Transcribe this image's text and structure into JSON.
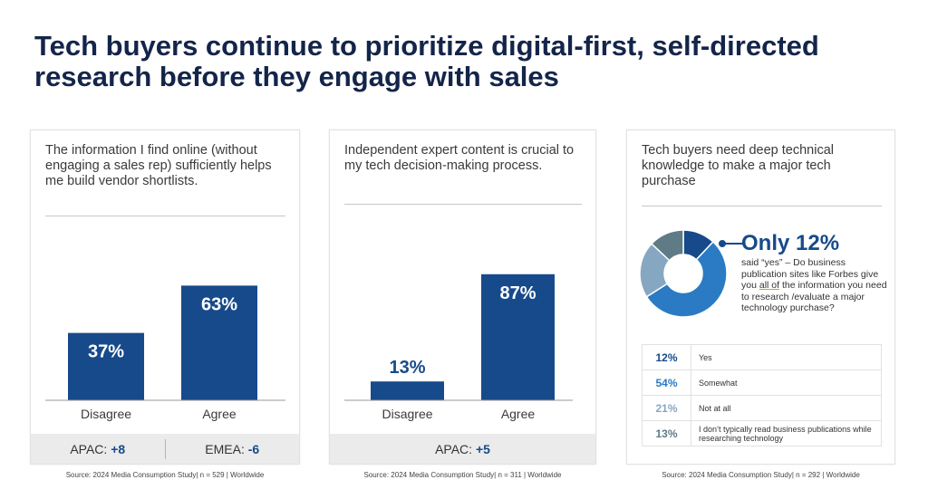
{
  "title": "Tech buyers continue to prioritize digital-first, self-directed research before they engage with sales",
  "colors": {
    "bar": "#174a8b",
    "heading": "#14254a",
    "footer_bg": "#ebebeb"
  },
  "cards": [
    {
      "heading": "The information I find online (without engaging a sales rep) sufficiently helps me build vendor shortlists.",
      "footer": {
        "apac_label": "APAC: ",
        "apac_value": "+8",
        "emea_label": "EMEA: ",
        "emea_value": "-6"
      },
      "source": "Source: 2024 Media Consumption Study| n = 529 | Worldwide"
    },
    {
      "heading": "Independent expert content is crucial to my tech decision-making process.",
      "footer": {
        "apac_label": "APAC: ",
        "apac_value": "+5"
      },
      "source": "Source: 2024 Media Consumption Study| n = 311 | Worldwide"
    },
    {
      "heading": "Tech buyers need deep technical knowledge to make a major tech purchase",
      "callout_big": "Only 12%",
      "callout_pre": "said “yes” – Do business publication sites like Forbes give you ",
      "callout_underline": "all of",
      "callout_post": " the information you need to research /evaluate a major technology purchase?",
      "table": [
        {
          "pct": "12%",
          "label": "Yes",
          "color": "#174a8b"
        },
        {
          "pct": "54%",
          "label": "Somewhat",
          "color": "#2a7bc4"
        },
        {
          "pct": "21%",
          "label": "Not at all",
          "color": "#86a7c2"
        },
        {
          "pct": "13%",
          "label": "I don’t typically read business publications while researching technology",
          "color": "#5e7b86"
        }
      ],
      "source": "Source: 2024 Media Consumption Study| n = 292 | Worldwide"
    }
  ],
  "chart_data": [
    {
      "type": "bar",
      "title": "The information I find online (without engaging a sales rep) sufficiently helps me build vendor shortlists.",
      "categories": [
        "Disagree",
        "Agree"
      ],
      "values": [
        37,
        63
      ],
      "labels": [
        "37%",
        "63%"
      ],
      "ylim": [
        0,
        100
      ]
    },
    {
      "type": "bar",
      "title": "Independent expert content is crucial to my tech decision-making process.",
      "categories": [
        "Disagree",
        "Agree"
      ],
      "values": [
        13,
        87
      ],
      "labels": [
        "13%",
        "87%"
      ],
      "ylim": [
        0,
        100
      ]
    },
    {
      "type": "pie",
      "title": "Tech buyers need deep technical knowledge to make a major tech purchase",
      "categories": [
        "Yes",
        "Somewhat",
        "Not at all",
        "I don’t typically read business publications while researching technology"
      ],
      "values": [
        12,
        54,
        21,
        13
      ],
      "colors": [
        "#174a8b",
        "#2a7bc4",
        "#86a7c2",
        "#5e7b86"
      ],
      "donut": true
    }
  ]
}
